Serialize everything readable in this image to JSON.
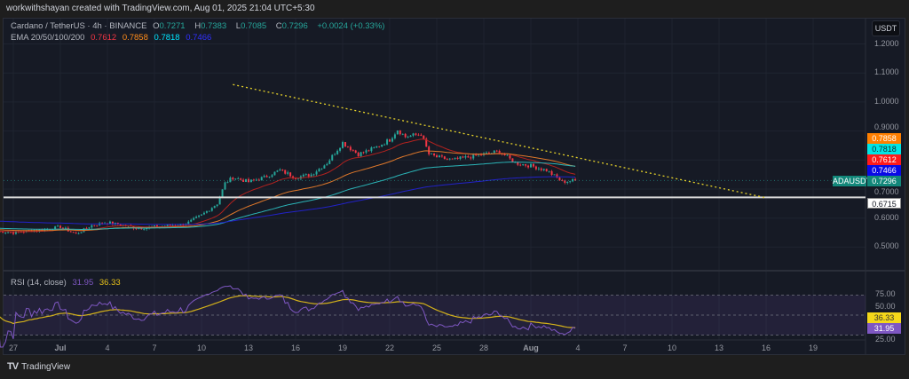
{
  "attribution": "workwithshayan created with TradingView.com, Aug 01, 2025 21:04 UTC+5:30",
  "legend": {
    "symbol": "Cardano / TetherUS · 4h · BINANCE",
    "o_label": "O",
    "o": "0.7271",
    "h_label": "H",
    "h": "0.7383",
    "l_label": "L",
    "l": "0.7085",
    "c_label": "C",
    "c": "0.7296",
    "change": "+0.0024 (+0.33%)",
    "ema_label": "EMA 20/50/100/200",
    "ema20": "0.7612",
    "ema50": "0.7858",
    "ema100": "0.7818",
    "ema200": "0.7466"
  },
  "currency_button": "USDT",
  "price_labels": {
    "ema50": "0.7858",
    "ema100": "0.7818",
    "ema20": "0.7612",
    "ema200": "0.7466",
    "symbol_tag": "ADAUSDT",
    "last": "0.7296",
    "hline": "0.6715"
  },
  "rsi": {
    "label": "RSI (14, close)",
    "value": "31.95",
    "ma": "36.33",
    "ticks": [
      "75.00",
      "50.00",
      "25.00"
    ]
  },
  "brand": "TradingView",
  "colors": {
    "up": "#26a69a",
    "down": "#f23645",
    "ema20": "#b2221f",
    "ema50": "#e0782a",
    "ema100": "#2bb5b8",
    "ema200": "#2222c8",
    "rsi": "#7e57c2",
    "rsi_ma": "#d4b21a",
    "trendline": "#e6d22a",
    "hline": "#ffffff"
  },
  "chart_data": {
    "type": "candlestick",
    "symbol": "ADAUSDT",
    "interval": "4h",
    "y_ticks": [
      "1.2000",
      "1.1000",
      "1.0000",
      "0.9000",
      "0.7000",
      "0.6000",
      "0.5000"
    ],
    "x_ticks": [
      "27",
      "Jul",
      "4",
      "7",
      "10",
      "13",
      "16",
      "19",
      "22",
      "25",
      "28",
      "Aug",
      "4",
      "7",
      "10",
      "13",
      "16",
      "19"
    ],
    "approx_closes": [
      [
        "2025-06-26",
        0.555
      ],
      [
        "2025-06-27",
        0.55
      ],
      [
        "2025-06-28",
        0.556
      ],
      [
        "2025-06-29",
        0.56
      ],
      [
        "2025-06-30",
        0.57
      ],
      [
        "2025-07-01",
        0.545
      ],
      [
        "2025-07-02",
        0.575
      ],
      [
        "2025-07-03",
        0.585
      ],
      [
        "2025-07-04",
        0.575
      ],
      [
        "2025-07-05",
        0.565
      ],
      [
        "2025-07-06",
        0.57
      ],
      [
        "2025-07-07",
        0.575
      ],
      [
        "2025-07-08",
        0.58
      ],
      [
        "2025-07-09",
        0.61
      ],
      [
        "2025-07-10",
        0.65
      ],
      [
        "2025-07-10T12",
        0.72
      ],
      [
        "2025-07-11",
        0.74
      ],
      [
        "2025-07-12",
        0.725
      ],
      [
        "2025-07-13",
        0.74
      ],
      [
        "2025-07-14",
        0.765
      ],
      [
        "2025-07-15",
        0.74
      ],
      [
        "2025-07-16",
        0.75
      ],
      [
        "2025-07-17",
        0.79
      ],
      [
        "2025-07-18",
        0.86
      ],
      [
        "2025-07-19",
        0.82
      ],
      [
        "2025-07-20",
        0.84
      ],
      [
        "2025-07-21",
        0.87
      ],
      [
        "2025-07-21T12",
        0.905
      ],
      [
        "2025-07-22",
        0.88
      ],
      [
        "2025-07-23",
        0.89
      ],
      [
        "2025-07-23T12",
        0.82
      ],
      [
        "2025-07-24",
        0.81
      ],
      [
        "2025-07-25",
        0.8
      ],
      [
        "2025-07-26",
        0.81
      ],
      [
        "2025-07-27",
        0.82
      ],
      [
        "2025-07-28",
        0.83
      ],
      [
        "2025-07-28T12",
        0.81
      ],
      [
        "2025-07-29",
        0.79
      ],
      [
        "2025-07-30",
        0.78
      ],
      [
        "2025-07-31",
        0.765
      ],
      [
        "2025-08-01",
        0.725
      ],
      [
        "2025-08-01T20",
        0.7296
      ]
    ],
    "horizontal_line": 0.6715,
    "trendline": [
      [
        "2025-07-11",
        1.06
      ],
      [
        "2025-08-14",
        0.67
      ]
    ],
    "ema_periods": [
      20,
      50,
      100,
      200
    ],
    "rsi_levels": [
      75,
      50,
      25
    ]
  }
}
